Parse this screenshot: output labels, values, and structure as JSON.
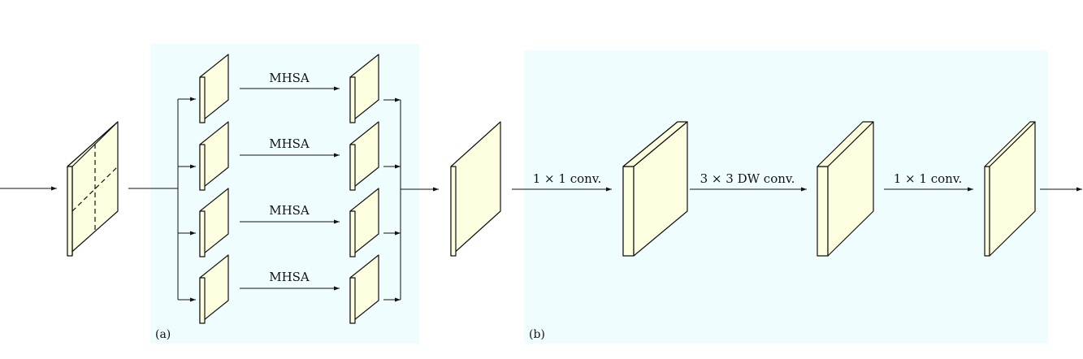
{
  "colors": {
    "panel_bg": "#f0fdff",
    "plate_fill": "#fdfddf",
    "stroke": "#111111"
  },
  "panel_a": {
    "label": "(a)",
    "branches": [
      {
        "op_label": "MHSA"
      },
      {
        "op_label": "MHSA"
      },
      {
        "op_label": "MHSA"
      },
      {
        "op_label": "MHSA"
      }
    ]
  },
  "panel_b": {
    "label": "(b)",
    "ops": [
      {
        "op_label": "1 × 1 conv."
      },
      {
        "op_label": "3 × 3 DW conv."
      },
      {
        "op_label": "1 × 1 conv."
      }
    ]
  }
}
